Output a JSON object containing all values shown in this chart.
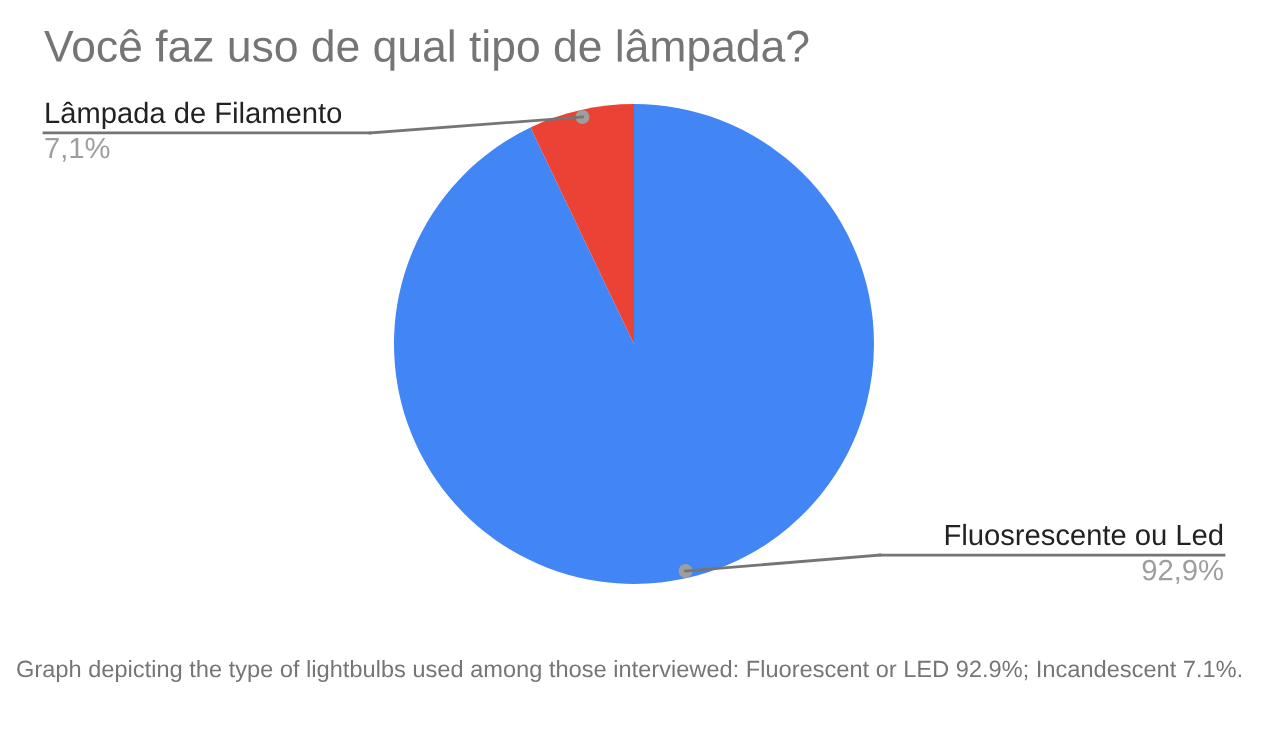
{
  "chart_data": {
    "type": "pie",
    "title": "Você faz uso de qual tipo de lâmpada?",
    "categories": [
      "Fluosrescente ou Led",
      "Lâmpada de Filamento"
    ],
    "values": [
      92.9,
      7.1
    ],
    "colors": [
      "#4285f4",
      "#ea4335"
    ],
    "value_labels": [
      "92,9%",
      "7,1%"
    ],
    "annotations": [
      "Graph depicting the type of lightbulbs used among those interviewed: Fluorescent or LED 92.9%; Incandescent 7.1%."
    ]
  }
}
